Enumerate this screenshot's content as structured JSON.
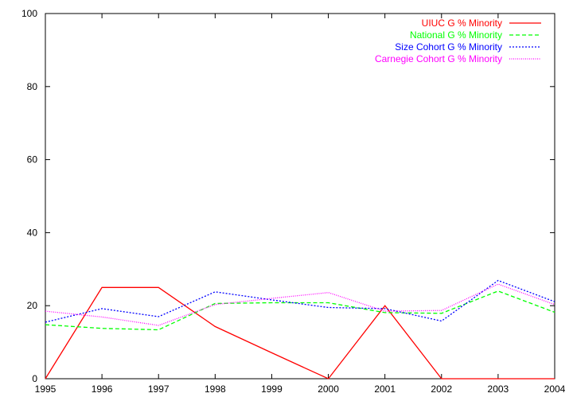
{
  "chart_data": {
    "type": "line",
    "title": "",
    "xlabel": "",
    "ylabel": "",
    "xlim": [
      1995,
      2004
    ],
    "ylim": [
      0,
      100
    ],
    "x": [
      1995,
      1996,
      1997,
      1998,
      1999,
      2000,
      2001,
      2002,
      2003,
      2004
    ],
    "xticks": [
      "1995",
      "1996",
      "1997",
      "1998",
      "1999",
      "2000",
      "2001",
      "2002",
      "2003",
      "2004"
    ],
    "yticks": [
      "0",
      "20",
      "40",
      "60",
      "80",
      "100"
    ],
    "ytick_values": [
      0,
      20,
      40,
      60,
      80,
      100
    ],
    "grid": false,
    "legend_position": "top-right",
    "series": [
      {
        "name": "UIUC G % Minority",
        "color": "#ff0000",
        "dash": "solid",
        "values": [
          0,
          25,
          25,
          14.3,
          7.1,
          0,
          20,
          0,
          0,
          0
        ]
      },
      {
        "name": "National G % Minority",
        "color": "#00ff00",
        "dash": "dashed",
        "values": [
          14.8,
          13.8,
          13.4,
          20.6,
          20.8,
          20.8,
          18.1,
          17.9,
          24,
          18.2
        ]
      },
      {
        "name": "Size Cohort G % Minority",
        "color": "#0000ff",
        "dash": "dotted",
        "values": [
          15.5,
          19.2,
          17,
          23.8,
          21.6,
          19.5,
          19.2,
          15.8,
          26.9,
          21.1
        ]
      },
      {
        "name": "Carnegie Cohort G % Minority",
        "color": "#ff00ff",
        "dash": "dotted-fine",
        "values": [
          18.5,
          16.9,
          14.6,
          20.3,
          22,
          23.6,
          18.5,
          18.7,
          25.9,
          20.3
        ]
      }
    ]
  }
}
